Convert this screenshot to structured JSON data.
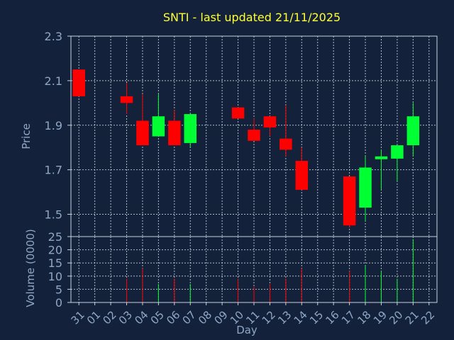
{
  "title": "SNTI - last updated 21/11/2025",
  "colors": {
    "background": "#13223a",
    "title": "#ffff33",
    "axis_text": "#8fa6c6",
    "frame": "#c7d2e0",
    "grid": "#d8dee8",
    "up": "#00ff33",
    "down": "#ff0000"
  },
  "chart_data": [
    {
      "type": "candlestick",
      "ylabel": "Price",
      "ylim": [
        1.4,
        2.3
      ],
      "yticks": [
        "2.3",
        "2.1",
        "1.9",
        "1.7",
        "1.5"
      ],
      "yticks_values": [
        2.3,
        2.1,
        1.9,
        1.7,
        1.5
      ],
      "grid": true,
      "series": [
        {
          "day": "31",
          "open": 2.15,
          "high": 2.15,
          "low": 2.03,
          "close": 2.03
        },
        {
          "day": "01"
        },
        {
          "day": "02"
        },
        {
          "day": "03",
          "open": 2.03,
          "high": 2.09,
          "low": 1.95,
          "close": 2.0
        },
        {
          "day": "04",
          "open": 1.92,
          "high": 2.04,
          "low": 1.81,
          "close": 1.81
        },
        {
          "day": "05",
          "open": 1.85,
          "high": 2.04,
          "low": 1.85,
          "close": 1.94
        },
        {
          "day": "06",
          "open": 1.92,
          "high": 1.97,
          "low": 1.81,
          "close": 1.81
        },
        {
          "day": "07",
          "open": 1.82,
          "high": 1.95,
          "low": 1.8,
          "close": 1.95
        },
        {
          "day": "08"
        },
        {
          "day": "09"
        },
        {
          "day": "10",
          "open": 1.98,
          "high": 1.98,
          "low": 1.93,
          "close": 1.93
        },
        {
          "day": "11",
          "open": 1.88,
          "high": 1.93,
          "low": 1.83,
          "close": 1.83
        },
        {
          "day": "12",
          "open": 1.94,
          "high": 1.94,
          "low": 1.85,
          "close": 1.89
        },
        {
          "day": "13",
          "open": 1.84,
          "high": 1.99,
          "low": 1.76,
          "close": 1.79
        },
        {
          "day": "14",
          "open": 1.74,
          "high": 1.8,
          "low": 1.61,
          "close": 1.61
        },
        {
          "day": "15"
        },
        {
          "day": "16"
        },
        {
          "day": "17",
          "open": 1.67,
          "high": 1.67,
          "low": 1.44,
          "close": 1.45
        },
        {
          "day": "18",
          "open": 1.53,
          "high": 1.76,
          "low": 1.47,
          "close": 1.71
        },
        {
          "day": "19",
          "open": 1.75,
          "high": 1.79,
          "low": 1.61,
          "close": 1.76
        },
        {
          "day": "20",
          "open": 1.75,
          "high": 1.81,
          "low": 1.65,
          "close": 1.81
        },
        {
          "day": "21",
          "open": 1.81,
          "high": 2.0,
          "low": 1.76,
          "close": 1.94
        },
        {
          "day": "22"
        }
      ]
    },
    {
      "type": "bar",
      "ylabel": "Volume (0000)",
      "xlabel": "Day",
      "ylim": [
        0,
        25
      ],
      "yticks": [
        "25",
        "20",
        "15",
        "10",
        "5",
        "0"
      ],
      "yticks_values": [
        25,
        20,
        15,
        10,
        5,
        0
      ],
      "categories": [
        "31",
        "01",
        "02",
        "03",
        "04",
        "05",
        "06",
        "07",
        "08",
        "09",
        "10",
        "11",
        "12",
        "13",
        "14",
        "15",
        "16",
        "17",
        "18",
        "19",
        "20",
        "21",
        "22"
      ],
      "values": [
        0,
        0,
        0,
        9,
        13,
        7,
        9,
        7,
        0,
        0,
        9,
        6,
        7,
        9,
        13,
        0,
        0,
        12,
        14,
        12,
        9,
        24,
        0
      ],
      "bar_direction": [
        "down",
        "none",
        "none",
        "down",
        "down",
        "up",
        "down",
        "up",
        "none",
        "none",
        "down",
        "down",
        "down",
        "down",
        "down",
        "none",
        "none",
        "down",
        "up",
        "up",
        "up",
        "up",
        "none"
      ],
      "grid": true
    }
  ]
}
